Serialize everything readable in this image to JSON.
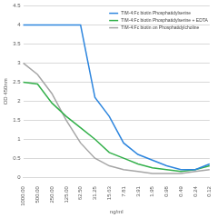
{
  "chart_data": {
    "type": "line",
    "x_label": "ng/ml",
    "y_label": "OD 450nm",
    "categories": [
      "1000.00",
      "500.00",
      "250.00",
      "125.00",
      "62.50",
      "31.25",
      "15.63",
      "7.81",
      "3.91",
      "1.95",
      "0.98",
      "0.49",
      "0.24",
      "0.12"
    ],
    "series": [
      {
        "name": "TIM-4:Fc biotin Phosphatidylserine",
        "color": "#2e86de",
        "values": [
          4.0,
          4.0,
          4.0,
          4.0,
          4.0,
          2.1,
          1.6,
          0.9,
          0.6,
          0.45,
          0.3,
          0.2,
          0.2,
          0.35
        ]
      },
      {
        "name": "TIM-4:Fc biotin Phosphatidylserine + EDTA",
        "color": "#33b04a",
        "values": [
          2.5,
          2.45,
          1.95,
          1.6,
          1.3,
          1.0,
          0.65,
          0.5,
          0.35,
          0.25,
          0.2,
          0.15,
          0.2,
          0.3
        ]
      },
      {
        "name": "TIM-4:Fc biotin on Phosphatidylcholine",
        "color": "#a6a6a6",
        "values": [
          3.0,
          2.7,
          2.2,
          1.5,
          0.9,
          0.5,
          0.3,
          0.2,
          0.15,
          0.1,
          0.1,
          0.1,
          0.15,
          0.2
        ]
      }
    ],
    "ylim": [
      0,
      4.5
    ],
    "yticks": [
      0,
      0.5,
      1,
      1.5,
      2,
      2.5,
      3,
      3.5,
      4,
      4.5
    ],
    "grid": true,
    "legend": "upper right",
    "marker": "none"
  }
}
